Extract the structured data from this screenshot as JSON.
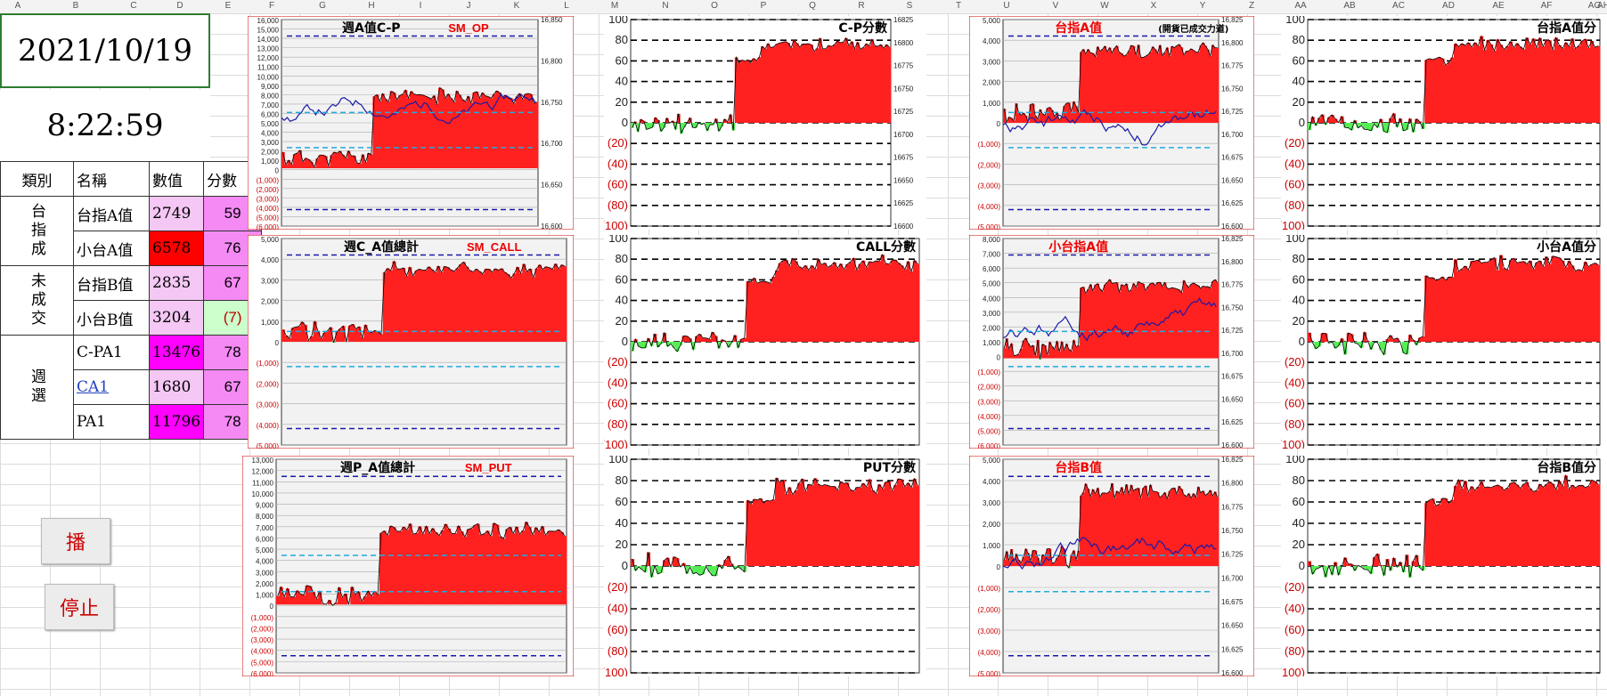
{
  "columns": [
    "A",
    "B",
    "C",
    "D",
    "E",
    "F",
    "G",
    "H",
    "I",
    "J",
    "K",
    "L",
    "M",
    "N",
    "O",
    "P",
    "Q",
    "R",
    "S",
    "T",
    "U",
    "V",
    "W",
    "X",
    "Y",
    "Z",
    "AA",
    "AB",
    "AC",
    "AD",
    "AE",
    "AF",
    "AG",
    "AH"
  ],
  "header": {
    "date": "2021/10/19",
    "time": "8:22:59"
  },
  "table": {
    "headers": [
      "類別",
      "名稱",
      "數值",
      "分數"
    ],
    "groups": [
      {
        "category": "台指成",
        "rows": [
          {
            "name": "台指A值",
            "value": "2749",
            "score": "59",
            "value_bg": "#f4c7f4",
            "score_bg": "#f58af5",
            "score_color": "#000"
          },
          {
            "name": "小台A值",
            "value": "6578",
            "score": "76",
            "value_bg": "#ff0000",
            "score_bg": "#f58af5",
            "score_color": "#000"
          }
        ]
      },
      {
        "category": "未成交",
        "rows": [
          {
            "name": "台指B值",
            "value": "2835",
            "score": "67",
            "value_bg": "#f4c7f4",
            "score_bg": "#f58af5",
            "score_color": "#000"
          },
          {
            "name": "小台B值",
            "value": "3204",
            "score": "(7)",
            "value_bg": "#f4c7f4",
            "score_bg": "#ccffcc",
            "score_color": "#c00000"
          }
        ]
      },
      {
        "category": "週選",
        "rows": [
          {
            "name": "C-PA1",
            "value": "13476",
            "score": "78",
            "value_bg": "#ff00ff",
            "score_bg": "#f58af5",
            "score_color": "#000"
          },
          {
            "name": "CA1",
            "value": "1680",
            "score": "67",
            "value_bg": "#f4c7f4",
            "score_bg": "#f58af5",
            "score_color": "#000"
          },
          {
            "name": "PA1",
            "value": "11796",
            "score": "78",
            "value_bg": "#ff00ff",
            "score_bg": "#f58af5",
            "score_color": "#000"
          }
        ]
      }
    ]
  },
  "buttons": {
    "play": "播",
    "stop": "停止"
  },
  "charts": [
    {
      "id": "c1",
      "title": "週A值C-P",
      "subtitle": "SM_OP",
      "yticks": [
        "16,000",
        "15,000",
        "14,000",
        "13,000",
        "12,000",
        "11,000",
        "10,000",
        "9,000",
        "8,000",
        "7,000",
        "6,000",
        "5,000",
        "4,000",
        "3,000",
        "2,000",
        "1,000",
        "0",
        "(1,000)",
        "(2,000)",
        "(3,000)",
        "(4,000)",
        "(5,000)",
        "(6,000)"
      ],
      "rticks": [
        "16,850",
        "16,800",
        "16,750",
        "16,700",
        "16,650",
        "16,600"
      ]
    },
    {
      "id": "c2",
      "title": "C-P分數",
      "yticks": [
        "100",
        "80",
        "60",
        "40",
        "20",
        "0",
        "(20)",
        "(40)",
        "(60)",
        "(80)",
        "(100)"
      ],
      "rticks": [
        "16825",
        "16800",
        "16775",
        "16750",
        "16725",
        "16700",
        "16675",
        "16650",
        "16625",
        "16600"
      ]
    },
    {
      "id": "c3",
      "title": "台指A值",
      "note": "(開貨已成交力道)",
      "yticks": [
        "5,000",
        "4,000",
        "3,000",
        "2,000",
        "1,000",
        "0",
        "(1,000)",
        "(2,000)",
        "(3,000)",
        "(4,000)",
        "(5,000)"
      ],
      "rticks": [
        "16,825",
        "16,800",
        "16,775",
        "16,750",
        "16,725",
        "16,700",
        "16,675",
        "16,650",
        "16,625",
        "16,600"
      ]
    },
    {
      "id": "c4",
      "title": "台指A值分",
      "yticks": [
        "100",
        "80",
        "60",
        "40",
        "20",
        "0",
        "(20)",
        "(40)",
        "(60)",
        "(80)",
        "(100)"
      ]
    },
    {
      "id": "c5",
      "title": "週C_A值總計",
      "subtitle": "SM_CALL",
      "yticks": [
        "5,000",
        "4,000",
        "3,000",
        "2,000",
        "1,000",
        "0",
        "(1,000)",
        "(2,000)",
        "(3,000)",
        "(4,000)",
        "(5,000)"
      ]
    },
    {
      "id": "c6",
      "title": "CALL分數",
      "yticks": [
        "100",
        "80",
        "60",
        "40",
        "20",
        "0",
        "(20)",
        "(40)",
        "(60)",
        "(80)",
        "(100)"
      ]
    },
    {
      "id": "c7",
      "title": "小台指A值",
      "yticks": [
        "8,000",
        "7,000",
        "6,000",
        "5,000",
        "4,000",
        "3,000",
        "2,000",
        "1,000",
        "0",
        "(1,000)",
        "(2,000)",
        "(3,000)",
        "(4,000)",
        "(5,000)",
        "(6,000)"
      ],
      "rticks": [
        "16,825",
        "16,800",
        "16,775",
        "16,750",
        "16,725",
        "16,700",
        "16,675",
        "16,650",
        "16,625",
        "16,600"
      ]
    },
    {
      "id": "c8",
      "title": "小台A值分",
      "yticks": [
        "100",
        "80",
        "60",
        "40",
        "20",
        "0",
        "(20)",
        "(40)",
        "(60)",
        "(80)",
        "(100)"
      ]
    },
    {
      "id": "c9",
      "title": "週P_A值總計",
      "subtitle": "SM_PUT",
      "yticks": [
        "13,000",
        "12,000",
        "11,000",
        "10,000",
        "9,000",
        "8,000",
        "7,000",
        "6,000",
        "5,000",
        "4,000",
        "3,000",
        "2,000",
        "1,000",
        "0",
        "(1,000)",
        "(2,000)",
        "(3,000)",
        "(4,000)",
        "(5,000)",
        "(6,000)"
      ]
    },
    {
      "id": "c10",
      "title": "PUT分數",
      "yticks": [
        "100",
        "80",
        "60",
        "40",
        "20",
        "0",
        "(20)",
        "(40)",
        "(60)",
        "(80)",
        "(100)"
      ]
    },
    {
      "id": "c11",
      "title": "台指B值",
      "yticks": [
        "5,000",
        "4,000",
        "3,000",
        "2,000",
        "1,000",
        "0",
        "(1,000)",
        "(2,000)",
        "(3,000)",
        "(4,000)",
        "(5,000)"
      ],
      "rticks": [
        "16,825",
        "16,800",
        "16,775",
        "16,750",
        "16,725",
        "16,700",
        "16,675",
        "16,650",
        "16,625",
        "16,600"
      ]
    },
    {
      "id": "c12",
      "title": "台指B值分",
      "yticks": [
        "100",
        "80",
        "60",
        "40",
        "20",
        "0",
        "(20)",
        "(40)",
        "(60)",
        "(80)",
        "(100)"
      ]
    }
  ]
}
